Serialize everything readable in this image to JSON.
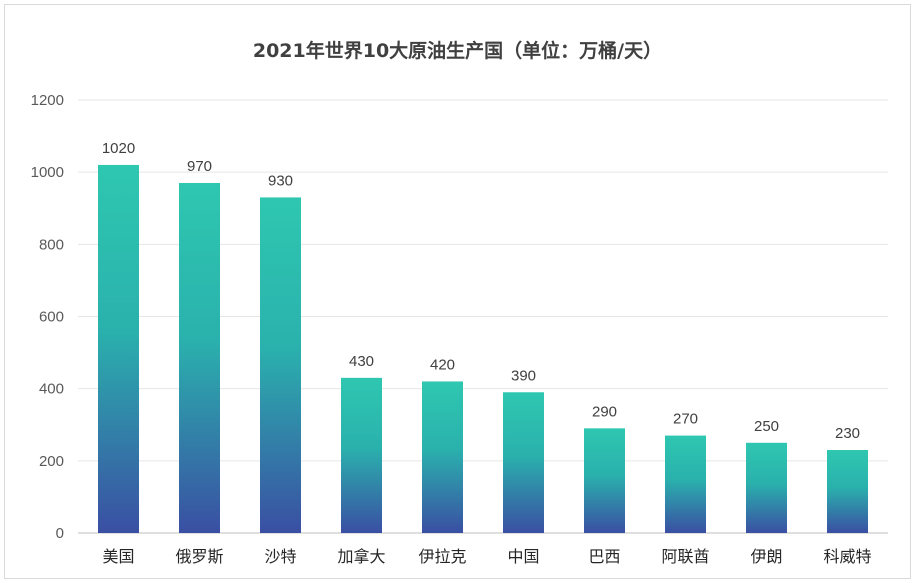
{
  "chart_data": {
    "type": "bar",
    "title": "2021年世界10大原油生产国（单位：万桶/天）",
    "categories": [
      "美国",
      "俄罗斯",
      "沙特",
      "加拿大",
      "伊拉克",
      "中国",
      "巴西",
      "阿联酋",
      "伊朗",
      "科威特"
    ],
    "values": [
      1020,
      970,
      930,
      430,
      420,
      390,
      290,
      270,
      250,
      230
    ],
    "ylim": [
      0,
      1200
    ],
    "yticks": [
      "0",
      "200",
      "400",
      "600",
      "800",
      "1000",
      "1200"
    ],
    "grid": true,
    "legend": "none",
    "colors": {
      "bar_top": "#2ec7b0",
      "bar_bottom": "#3a4fa3",
      "grid": "#e6e6e6"
    }
  }
}
